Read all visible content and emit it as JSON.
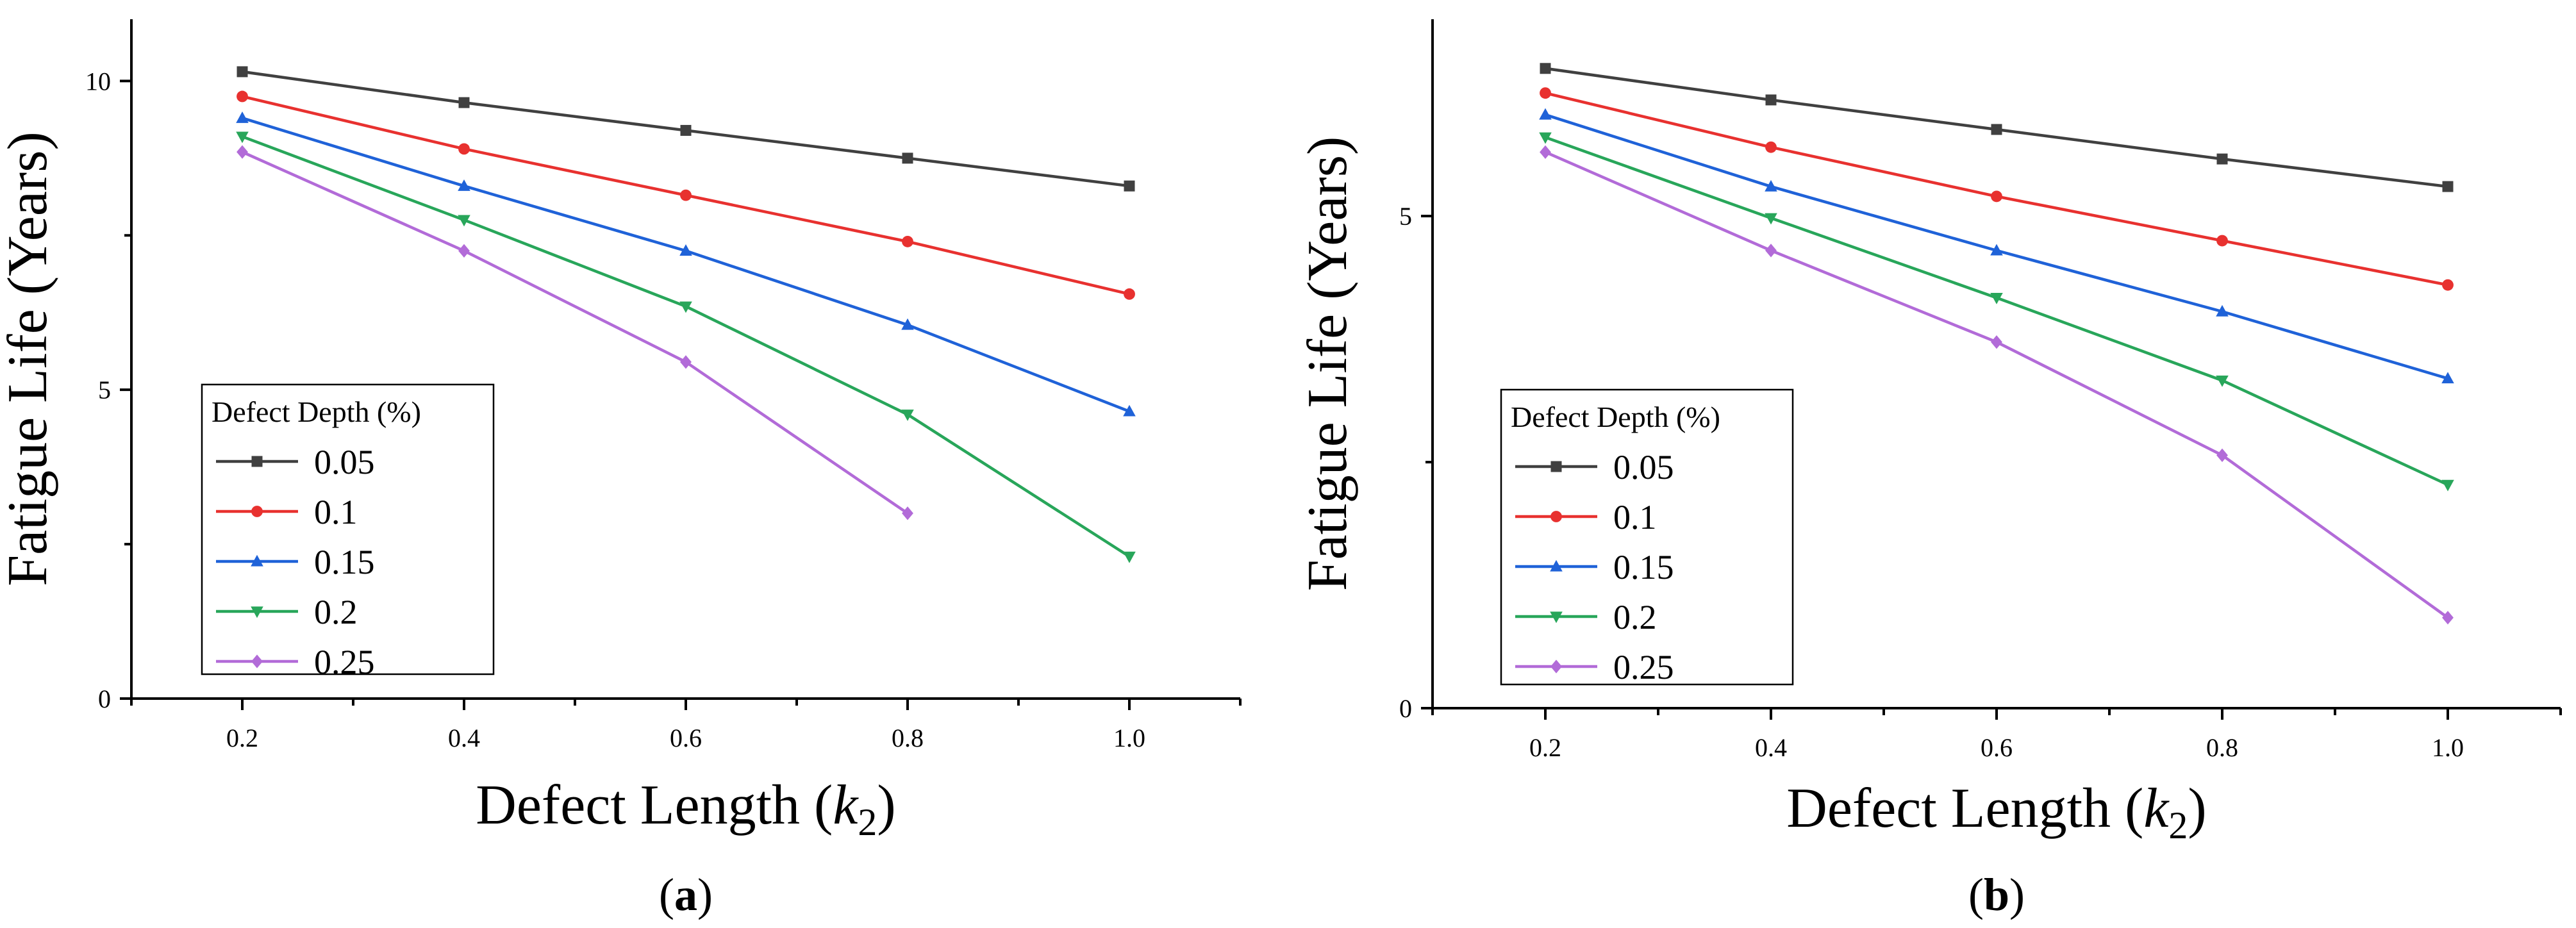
{
  "chart_data": [
    {
      "type": "line",
      "panel_label": "(a)",
      "panel_letter": "a",
      "xlabel_main": "Defect Length (",
      "xlabel_var": "k",
      "xlabel_sub": "2",
      "xlabel_close": ")",
      "ylabel": "Fatigue Life (Years)",
      "x": [
        0.2,
        0.4,
        0.6,
        0.8,
        1.0
      ],
      "xlim": [
        0.1,
        1.1
      ],
      "ylim": [
        0,
        11
      ],
      "xticks": [
        "0.2",
        "0.4",
        "0.6",
        "0.8",
        "1.0"
      ],
      "xticks_values": [
        0.2,
        0.4,
        0.6,
        0.8,
        1.0
      ],
      "yticks": [
        "0",
        "5",
        "10"
      ],
      "yticks_values": [
        0,
        5,
        10
      ],
      "legend_title": "Defect Depth (%)",
      "legend_position": "bottom-left",
      "series": [
        {
          "name": "0.05",
          "marker": "square",
          "color": "#404040",
          "values": [
            10.15,
            9.65,
            9.2,
            8.75,
            8.3
          ]
        },
        {
          "name": "0.1",
          "marker": "circle",
          "color": "#e8312f",
          "values": [
            9.75,
            8.9,
            8.15,
            7.4,
            6.55
          ]
        },
        {
          "name": "0.15",
          "marker": "triangle-up",
          "color": "#1f62d8",
          "values": [
            9.4,
            8.3,
            7.25,
            6.05,
            4.65
          ]
        },
        {
          "name": "0.2",
          "marker": "triangle-down",
          "color": "#28a65a",
          "values": [
            9.1,
            7.75,
            6.35,
            4.6,
            2.3
          ]
        },
        {
          "name": "0.25",
          "marker": "diamond",
          "color": "#b26bd8",
          "values": [
            8.85,
            7.25,
            5.45,
            3.0,
            null
          ]
        }
      ]
    },
    {
      "type": "line",
      "panel_label": "(b)",
      "panel_letter": "b",
      "xlabel_main": "Defect Length (",
      "xlabel_var": "k",
      "xlabel_sub": "2",
      "xlabel_close": ")",
      "ylabel": "Fatigue Life (Years)",
      "x": [
        0.2,
        0.4,
        0.6,
        0.8,
        1.0
      ],
      "xlim": [
        0.1,
        1.1
      ],
      "ylim": [
        0,
        7
      ],
      "xticks": [
        "0.2",
        "0.4",
        "0.6",
        "0.8",
        "1.0"
      ],
      "xticks_values": [
        0.2,
        0.4,
        0.6,
        0.8,
        1.0
      ],
      "yticks": [
        "0",
        "5"
      ],
      "yticks_values": [
        0,
        5
      ],
      "legend_title": "Defect Depth (%)",
      "legend_position": "bottom-left",
      "series": [
        {
          "name": "0.05",
          "marker": "square",
          "color": "#404040",
          "values": [
            6.5,
            6.18,
            5.88,
            5.58,
            5.3
          ]
        },
        {
          "name": "0.1",
          "marker": "circle",
          "color": "#e8312f",
          "values": [
            6.25,
            5.7,
            5.2,
            4.75,
            4.3
          ]
        },
        {
          "name": "0.15",
          "marker": "triangle-up",
          "color": "#1f62d8",
          "values": [
            6.03,
            5.3,
            4.65,
            4.03,
            3.35
          ]
        },
        {
          "name": "0.2",
          "marker": "triangle-down",
          "color": "#28a65a",
          "values": [
            5.8,
            4.98,
            4.17,
            3.33,
            2.27
          ]
        },
        {
          "name": "0.25",
          "marker": "diamond",
          "color": "#b26bd8",
          "values": [
            5.65,
            4.65,
            3.72,
            2.57,
            0.92
          ]
        }
      ]
    }
  ]
}
